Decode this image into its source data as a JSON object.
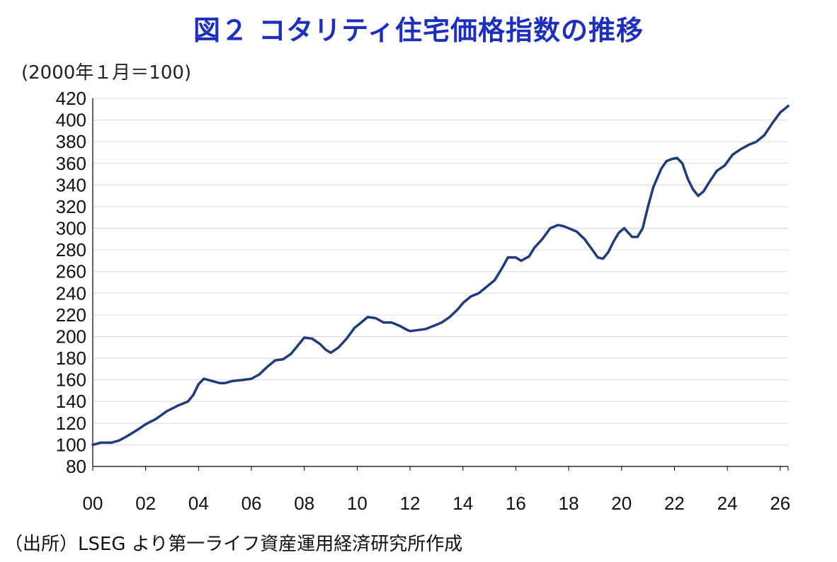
{
  "title": "図２ コタリティ住宅価格指数の推移",
  "unit_label": "(2000年１月＝100)",
  "source": "（出所）LSEG より第一ライフ資産運用経済研究所作成",
  "colors": {
    "line": "#1f3a7d",
    "title": "#1c2fbe",
    "grid": "#d9d9d9",
    "axis": "#000000"
  },
  "chart_data": {
    "type": "line",
    "title": "図２ コタリティ住宅価格指数の推移",
    "ylabel": "(2000年１月＝100)",
    "xlabel": "",
    "ylim": [
      80,
      420
    ],
    "yticks": [
      80,
      100,
      120,
      140,
      160,
      180,
      200,
      220,
      240,
      260,
      280,
      300,
      320,
      340,
      360,
      380,
      400,
      420
    ],
    "xlim": [
      2000,
      2026.3
    ],
    "xticks": [
      {
        "value": 2000,
        "label": "00"
      },
      {
        "value": 2002,
        "label": "02"
      },
      {
        "value": 2004,
        "label": "04"
      },
      {
        "value": 2006,
        "label": "06"
      },
      {
        "value": 2008,
        "label": "08"
      },
      {
        "value": 2010,
        "label": "10"
      },
      {
        "value": 2012,
        "label": "12"
      },
      {
        "value": 2014,
        "label": "14"
      },
      {
        "value": 2016,
        "label": "16"
      },
      {
        "value": 2018,
        "label": "18"
      },
      {
        "value": 2020,
        "label": "20"
      },
      {
        "value": 2022,
        "label": "22"
      },
      {
        "value": 2024,
        "label": "24"
      },
      {
        "value": 2026,
        "label": "26"
      }
    ],
    "grid": "horizontal",
    "legend": "none",
    "series": [
      {
        "x": [
          2000.0,
          2000.3,
          2000.7,
          2001.0,
          2001.3,
          2001.7,
          2002.0,
          2002.4,
          2002.8,
          2003.2,
          2003.6,
          2003.8,
          2004.0,
          2004.2,
          2004.5,
          2004.8,
          2005.0,
          2005.3,
          2005.7,
          2006.0,
          2006.3,
          2006.6,
          2006.9,
          2007.2,
          2007.5,
          2007.8,
          2008.0,
          2008.3,
          2008.6,
          2008.8,
          2009.0,
          2009.3,
          2009.6,
          2009.9,
          2010.2,
          2010.4,
          2010.7,
          2011.0,
          2011.3,
          2011.6,
          2011.9,
          2012.0,
          2012.3,
          2012.6,
          2012.9,
          2013.2,
          2013.5,
          2013.8,
          2014.0,
          2014.3,
          2014.6,
          2014.9,
          2015.2,
          2015.5,
          2015.7,
          2016.0,
          2016.2,
          2016.5,
          2016.7,
          2017.0,
          2017.3,
          2017.6,
          2017.8,
          2018.0,
          2018.3,
          2018.6,
          2018.9,
          2019.1,
          2019.3,
          2019.5,
          2019.7,
          2019.9,
          2020.1,
          2020.4,
          2020.6,
          2020.8,
          2021.0,
          2021.2,
          2021.5,
          2021.7,
          2021.9,
          2022.1,
          2022.3,
          2022.5,
          2022.7,
          2022.9,
          2023.1,
          2023.3,
          2023.6,
          2023.9,
          2024.2,
          2024.5,
          2024.8,
          2025.1,
          2025.4,
          2025.7,
          2026.0,
          2026.2,
          2026.3
        ],
        "values": [
          100,
          102,
          102,
          104,
          108,
          114,
          119,
          124,
          131,
          136,
          140,
          146,
          156,
          161,
          159,
          157,
          157,
          159,
          160,
          161,
          165,
          172,
          178,
          179,
          184,
          193,
          199,
          198,
          193,
          188,
          185,
          190,
          198,
          208,
          214,
          218,
          217,
          213,
          213,
          210,
          206,
          205,
          206,
          207,
          210,
          213,
          218,
          225,
          231,
          237,
          240,
          246,
          252,
          264,
          273,
          273,
          270,
          274,
          282,
          290,
          300,
          303,
          302,
          300,
          297,
          290,
          280,
          273,
          272,
          278,
          288,
          296,
          300,
          292,
          292,
          300,
          320,
          338,
          355,
          362,
          364,
          365,
          360,
          346,
          336,
          330,
          334,
          342,
          353,
          358,
          368,
          373,
          377,
          380,
          386,
          397,
          407,
          411,
          413
        ]
      }
    ]
  }
}
